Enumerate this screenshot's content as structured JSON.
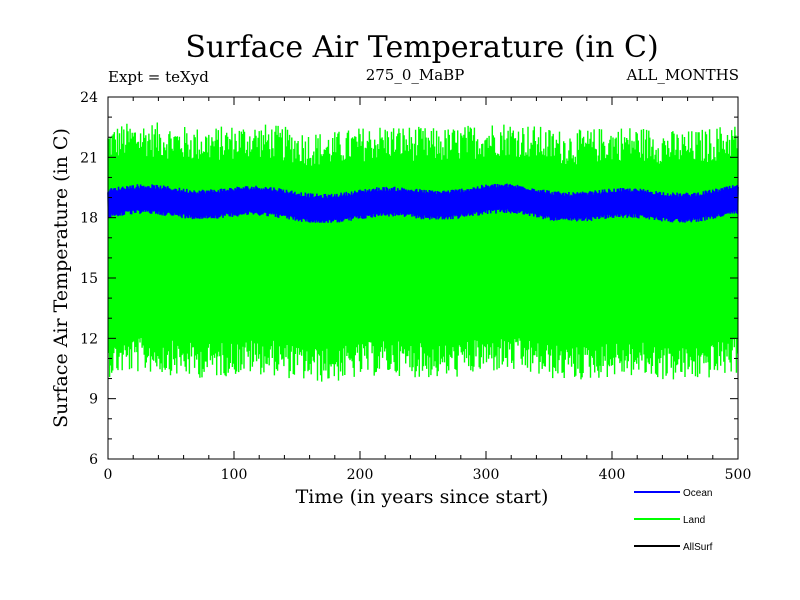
{
  "chart_data": {
    "type": "line",
    "title": "Surface Air Temperature (in C)",
    "subtitle_left": "Expt = teXyd",
    "subtitle_center": "275_0_MaBP",
    "subtitle_right": "ALL_MONTHS",
    "xlabel": "Time (in years since start)",
    "ylabel": "Surface Air Temperature (in C)",
    "xlim": [
      0,
      500
    ],
    "ylim": [
      6,
      24
    ],
    "xticks": [
      0,
      100,
      200,
      300,
      400,
      500
    ],
    "yticks": [
      6,
      9,
      12,
      15,
      18,
      21,
      24
    ],
    "xtick_labels": [
      "0",
      "100",
      "200",
      "300",
      "400",
      "500"
    ],
    "ytick_labels": [
      "6",
      "9",
      "12",
      "15",
      "18",
      "21",
      "24"
    ],
    "grid": false,
    "legend_position": "bottom-right",
    "series": [
      {
        "name": "Ocean",
        "color": "#0000ff",
        "description_range": [
          18.0,
          19.5
        ],
        "mean": 18.7
      },
      {
        "name": "Land",
        "color": "#00ff00",
        "description_range": [
          10.0,
          22.5
        ],
        "mean": 16.3
      },
      {
        "name": "AllSurf",
        "color": "#000000",
        "mean": 18.7
      }
    ]
  }
}
